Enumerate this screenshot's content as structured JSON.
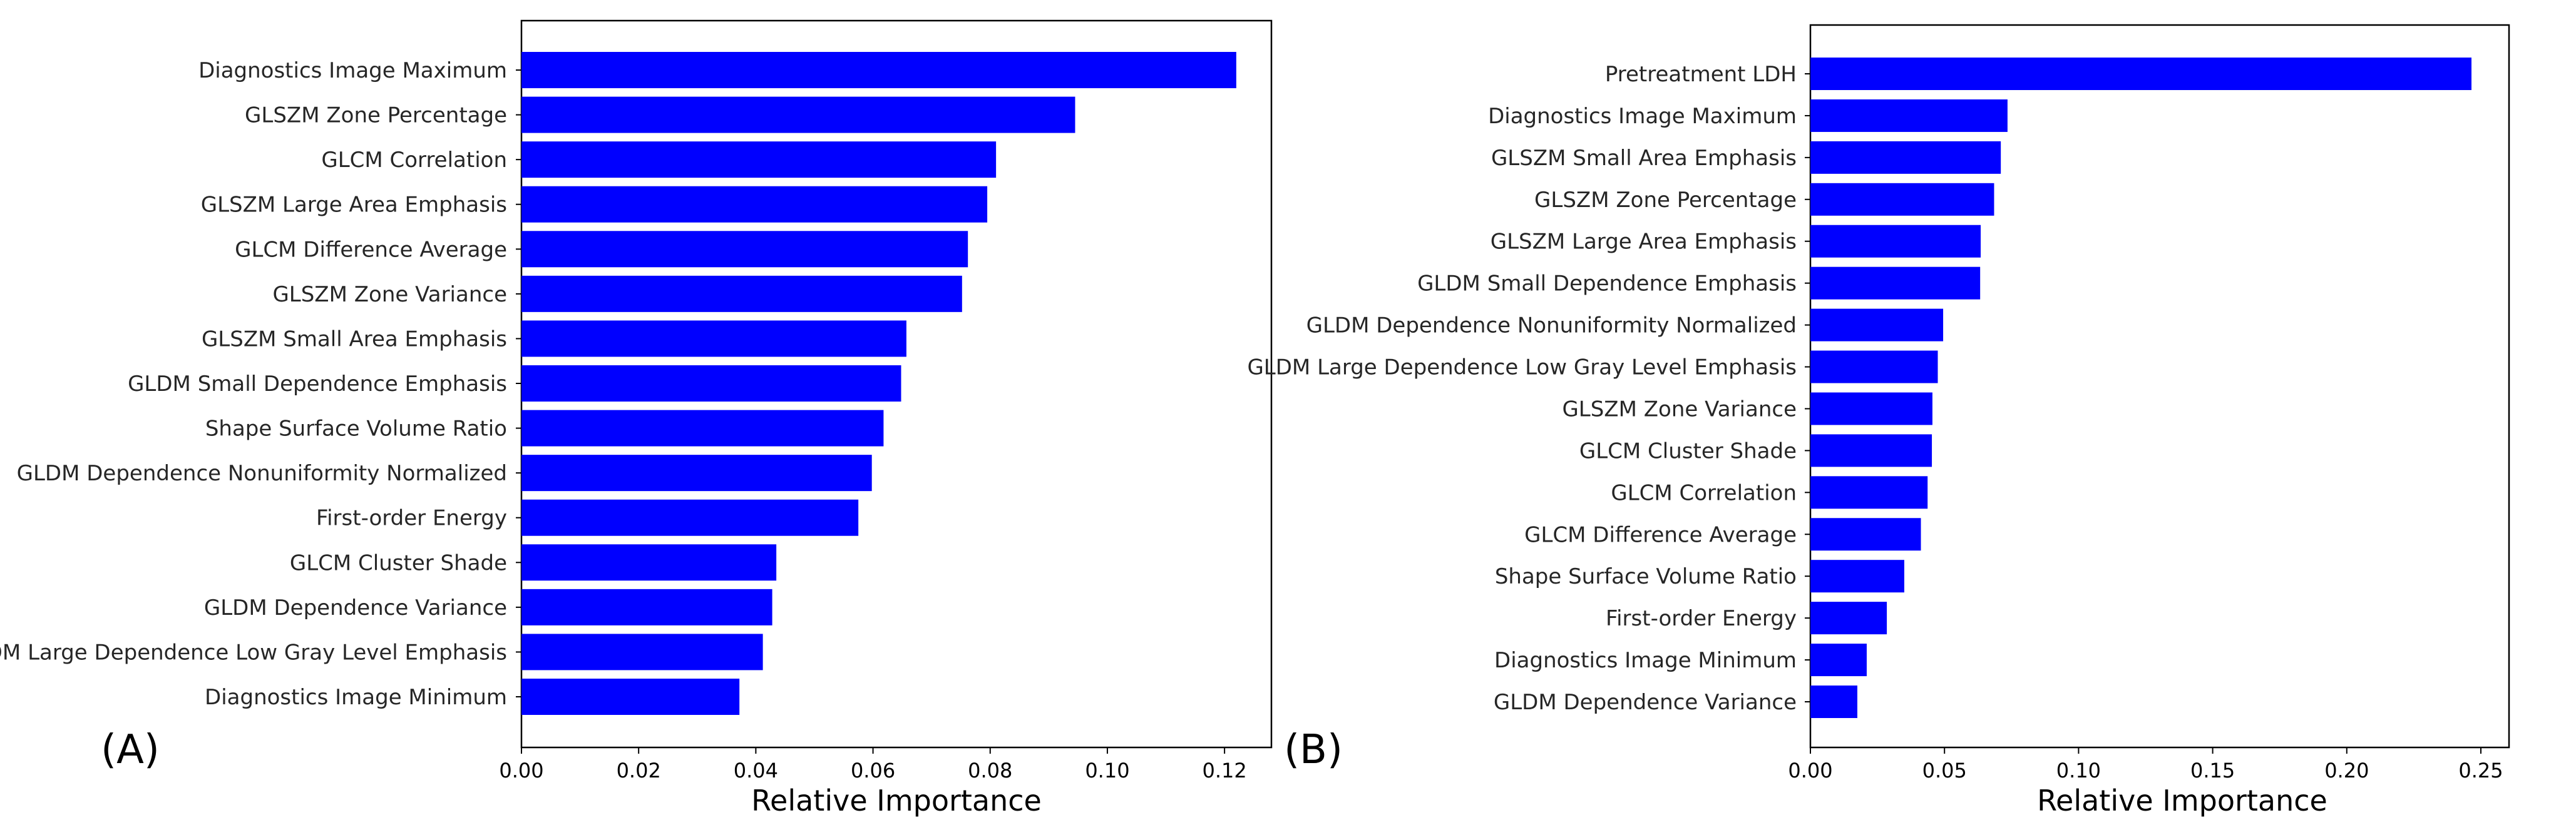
{
  "colors": {
    "bar": "#0000FF",
    "axis": "#000000",
    "background": "#FFFFFF"
  },
  "chart_data": [
    {
      "type": "bar",
      "orientation": "horizontal",
      "panel_label": "(A)",
      "xlabel": "Relative Importance",
      "ylabel": "",
      "xlim": [
        0,
        0.128
      ],
      "xticks": [
        0.0,
        0.02,
        0.04,
        0.06,
        0.08,
        0.1,
        0.12
      ],
      "xtick_labels": [
        "0.00",
        "0.02",
        "0.04",
        "0.06",
        "0.08",
        "0.10",
        "0.12"
      ],
      "categories": [
        "Diagnostics Image Maximum",
        "GLSZM Zone Percentage",
        "GLCM Correlation",
        "GLSZM Large Area Emphasis",
        "GLCM Difference Average",
        "GLSZM Zone Variance",
        "GLSZM Small Area Emphasis",
        "GLDM Small Dependence Emphasis",
        "Shape Surface Volume Ratio",
        "GLDM Dependence Nonuniformity Normalized",
        "First-order Energy",
        "GLCM Cluster Shade",
        "GLDM Dependence Variance",
        "GLDM Large Dependence Low Gray Level Emphasis",
        "Diagnostics Image Minimum"
      ],
      "values": [
        0.122,
        0.0945,
        0.081,
        0.0795,
        0.0762,
        0.0752,
        0.0657,
        0.0648,
        0.0618,
        0.0598,
        0.0575,
        0.0435,
        0.0428,
        0.0412,
        0.0372
      ]
    },
    {
      "type": "bar",
      "orientation": "horizontal",
      "panel_label": "(B)",
      "xlabel": "Relative Importance",
      "ylabel": "",
      "xlim": [
        0,
        0.2605
      ],
      "xticks": [
        0.0,
        0.05,
        0.1,
        0.15,
        0.2,
        0.25
      ],
      "xtick_labels": [
        "0.00",
        "0.05",
        "0.10",
        "0.15",
        "0.20",
        "0.25"
      ],
      "categories": [
        "Pretreatment LDH",
        "Diagnostics Image Maximum",
        "GLSZM Small Area Emphasis",
        "GLSZM Zone Percentage",
        "GLSZM Large Area Emphasis",
        "GLDM Small Dependence Emphasis",
        "GLDM Dependence Nonuniformity Normalized",
        "GLDM Large Dependence Low Gray Level Emphasis",
        "GLSZM Zone Variance",
        "GLCM Cluster Shade",
        "GLCM Correlation",
        "GLCM Difference Average",
        "Shape Surface Volume Ratio",
        "First-order Energy",
        "Diagnostics Image Minimum",
        "GLDM Dependence Variance"
      ],
      "values": [
        0.2465,
        0.0735,
        0.071,
        0.0685,
        0.0635,
        0.0633,
        0.0495,
        0.0475,
        0.0455,
        0.0453,
        0.0437,
        0.0412,
        0.035,
        0.0285,
        0.021,
        0.0175
      ]
    }
  ]
}
